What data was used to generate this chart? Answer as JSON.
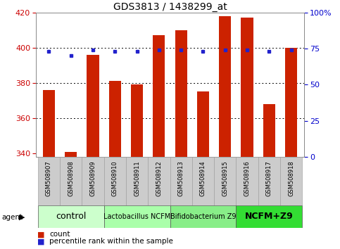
{
  "title": "GDS3813 / 1438299_at",
  "samples": [
    "GSM508907",
    "GSM508908",
    "GSM508909",
    "GSM508910",
    "GSM508911",
    "GSM508912",
    "GSM508913",
    "GSM508914",
    "GSM508915",
    "GSM508916",
    "GSM508917",
    "GSM508918"
  ],
  "counts": [
    376,
    341,
    396,
    381,
    379,
    407,
    410,
    375,
    418,
    417,
    368,
    400
  ],
  "percentiles": [
    73,
    70,
    74,
    73,
    73,
    74,
    74,
    73,
    74,
    74,
    73,
    74
  ],
  "bar_bottom": 338,
  "ylim_left": [
    338,
    420
  ],
  "ylim_right": [
    0,
    100
  ],
  "yticks_left": [
    340,
    360,
    380,
    400,
    420
  ],
  "yticks_right": [
    0,
    25,
    50,
    75,
    100
  ],
  "bar_color": "#cc2200",
  "dot_color": "#2222cc",
  "grid_color": "#000000",
  "agent_groups": [
    {
      "label": "control",
      "start": 0,
      "end": 3,
      "color": "#ccffcc",
      "fontsize": 9,
      "bold": false
    },
    {
      "label": "Lactobacillus NCFM",
      "start": 3,
      "end": 6,
      "color": "#aaffaa",
      "fontsize": 7,
      "bold": false
    },
    {
      "label": "Bifidobacterium Z9",
      "start": 6,
      "end": 9,
      "color": "#88ee88",
      "fontsize": 7,
      "bold": false
    },
    {
      "label": "NCFM+Z9",
      "start": 9,
      "end": 12,
      "color": "#33dd33",
      "fontsize": 9,
      "bold": true
    }
  ],
  "tick_label_color_left": "#cc0000",
  "tick_label_color_right": "#0000cc",
  "legend_count_label": "count",
  "legend_pct_label": "percentile rank within the sample",
  "bar_width": 0.55,
  "title_fontsize": 10,
  "tick_box_color": "#cccccc",
  "tick_box_edge": "#999999"
}
